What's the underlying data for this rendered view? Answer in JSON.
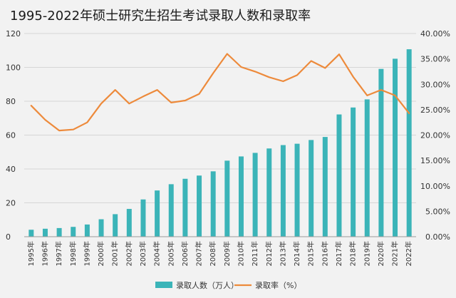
{
  "chart_data": {
    "type": "bar",
    "title": "1995-2022年硕士研究生招生考试录取人数和录取率",
    "categories": [
      "1995年",
      "1996年",
      "1997年",
      "1998年",
      "1999年",
      "2000年",
      "2001年",
      "2002年",
      "2003年",
      "2004年",
      "2005年",
      "2006年",
      "2007年",
      "2008年",
      "2009年",
      "2010年",
      "2011年",
      "2012年",
      "2013年",
      "2014年",
      "2015年",
      "2016年",
      "2017年",
      "2018年",
      "2019年",
      "2020年",
      "2021年",
      "2022年"
    ],
    "series": [
      {
        "name": "录取人数（万人）",
        "type": "bar",
        "axis": "left",
        "color": "#3bb4b8",
        "values": [
          4.1,
          4.7,
          5.1,
          5.8,
          7.2,
          10.3,
          13.3,
          16.4,
          22.0,
          27.3,
          31.0,
          34.2,
          36.1,
          38.6,
          44.9,
          47.4,
          49.5,
          52.1,
          54.1,
          54.9,
          57.1,
          58.9,
          72.2,
          76.3,
          81.1,
          99.1,
          105.1,
          110.7
        ]
      },
      {
        "name": "录取率（%）",
        "type": "line",
        "axis": "right",
        "color": "#ed8a3b",
        "values": [
          25.8,
          23.0,
          20.9,
          21.1,
          22.5,
          26.2,
          28.9,
          26.2,
          27.6,
          28.9,
          26.4,
          26.8,
          28.1,
          32.2,
          36.0,
          33.4,
          32.5,
          31.4,
          30.6,
          31.8,
          34.6,
          33.2,
          35.9,
          31.5,
          27.8,
          28.9,
          27.8,
          24.3
        ]
      }
    ],
    "yleft": {
      "min": 0,
      "max": 120,
      "ticks": [
        "0",
        "20",
        "40",
        "60",
        "80",
        "100",
        "120"
      ]
    },
    "yright": {
      "min": 0,
      "max": 40,
      "ticks": [
        "0.00%",
        "5.00%",
        "10.00%",
        "15.00%",
        "20.00%",
        "25.00%",
        "30.00%",
        "35.00%",
        "40.00%"
      ]
    },
    "grid": true,
    "legend": "bottom-center"
  }
}
